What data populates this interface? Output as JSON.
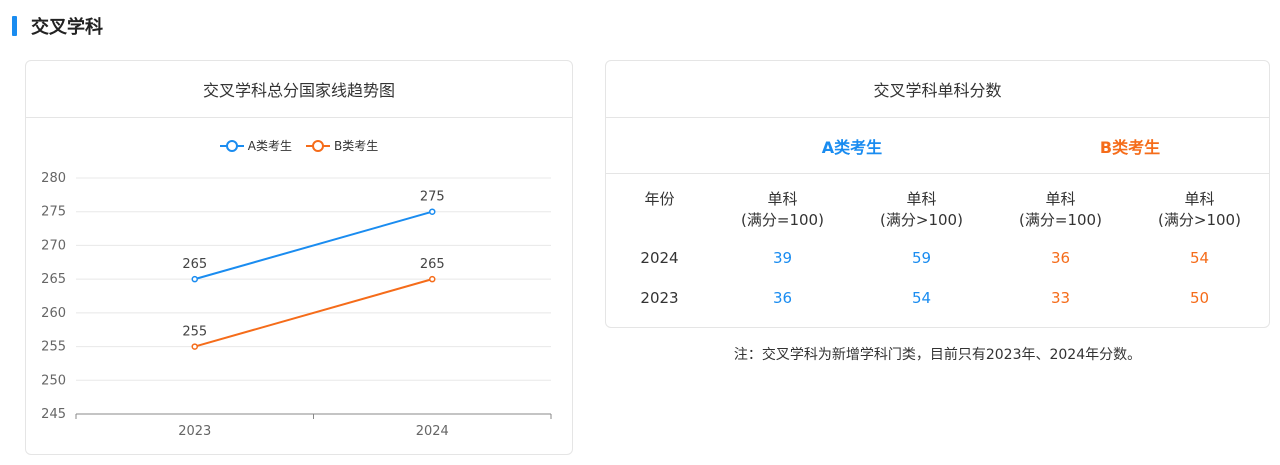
{
  "section": {
    "title": "交叉学科"
  },
  "chart_card": {
    "title": "交叉学科总分国家线趋势图"
  },
  "legend": [
    {
      "label": "A类考生",
      "color": "#1a8cf0"
    },
    {
      "label": "B类考生",
      "color": "#f56c1a"
    }
  ],
  "chart_data": {
    "type": "line",
    "title": "交叉学科总分国家线趋势图",
    "categories": [
      "2023",
      "2024"
    ],
    "series": [
      {
        "name": "A类考生",
        "values": [
          265,
          275
        ],
        "color": "#1a8cf0"
      },
      {
        "name": "B类考生",
        "values": [
          255,
          265
        ],
        "color": "#f56c1a"
      }
    ],
    "ylim": [
      245,
      280
    ],
    "yticks": [
      245,
      250,
      255,
      260,
      265,
      270,
      275,
      280
    ],
    "grid": true,
    "legend_position": "top"
  },
  "table_card": {
    "title": "交叉学科单科分数",
    "groups": {
      "a": "A类考生",
      "b": "B类考生"
    },
    "headers": {
      "year": "年份",
      "c1": {
        "line1": "单科",
        "line2": "(满分=100)"
      },
      "c2": {
        "line1": "单科",
        "line2": "(满分>100)"
      },
      "c3": {
        "line1": "单科",
        "line2": "(满分=100)"
      },
      "c4": {
        "line1": "单科",
        "line2": "(满分>100)"
      }
    },
    "rows": [
      {
        "year": "2024",
        "a1": "39",
        "a2": "59",
        "b1": "36",
        "b2": "54"
      },
      {
        "year": "2023",
        "a1": "36",
        "a2": "54",
        "b1": "33",
        "b2": "50"
      }
    ]
  },
  "note": "注：交叉学科为新增学科门类，目前只有2023年、2024年分数。"
}
